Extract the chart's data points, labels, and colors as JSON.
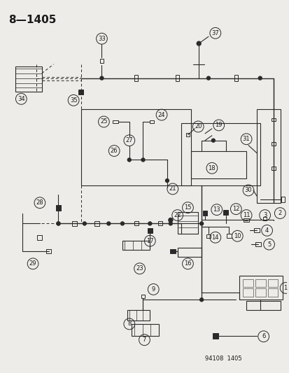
{
  "title": "8—1405",
  "footer": "94108  1405",
  "bg_color": "#eeece8",
  "line_color": "#2a2a2a",
  "text_color": "#1a1a1a",
  "title_fontsize": 11,
  "label_fontsize": 6.5,
  "fig_width": 4.14,
  "fig_height": 5.33
}
